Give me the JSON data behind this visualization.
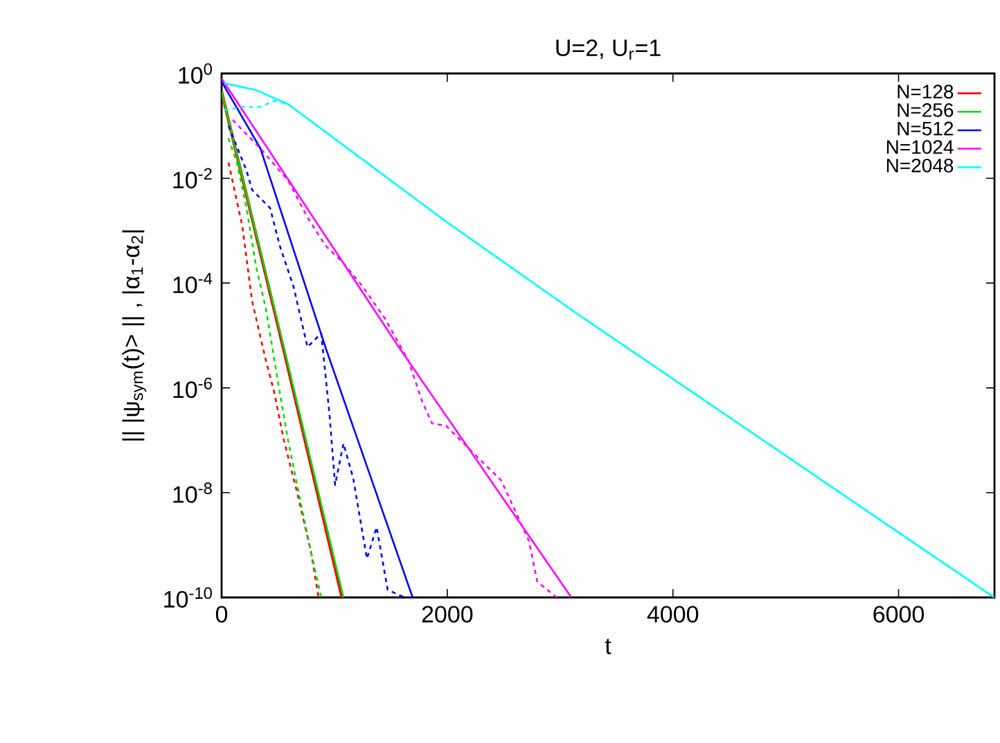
{
  "chart_data": {
    "type": "line",
    "title": "U=2, U$_{r}$=1",
    "xlabel": "t",
    "ylabel": "|| |ψ$_{sym}$(t)> || , |α$_{1}$-α$_{2}$|",
    "log": "y",
    "legend": "top right",
    "xlim": [
      0,
      6850
    ],
    "xticks": [
      0,
      2000,
      4000,
      6000
    ],
    "ylim": [
      1e-10,
      1
    ],
    "yticks": [
      {
        "value": 1e-10,
        "label": "10$^{-10}$"
      },
      {
        "value": 1e-08,
        "label": "10$^{-8}$"
      },
      {
        "value": 1e-06,
        "label": "10$^{-6}$"
      },
      {
        "value": 0.0001,
        "label": "10$^{-4}$"
      },
      {
        "value": 0.01,
        "label": "10$^{-2}$"
      },
      {
        "value": 1,
        "label": "10$^{0}$"
      }
    ],
    "series": [
      {
        "name": "N=128",
        "color": "#ff0000",
        "line_style": "solid",
        "x": [
          0,
          545,
          1067
        ],
        "values": [
          0.45,
          6e-06,
          1e-10
        ]
      },
      {
        "name": "N=256",
        "color": "#00dd00",
        "line_style": "solid",
        "x": [
          0,
          552,
          1080
        ],
        "values": [
          0.45,
          6e-06,
          1e-10
        ]
      },
      {
        "name": "N=512",
        "color": "#0000ff",
        "line_style": "solid",
        "x": [
          0,
          344,
          920,
          1693
        ],
        "values": [
          0.7,
          0.037,
          6e-06,
          1e-10
        ]
      },
      {
        "name": "N=1024",
        "color": "#ff00ff",
        "line_style": "solid",
        "x": [
          0,
          1570,
          3100
        ],
        "values": [
          0.8,
          6e-06,
          1e-10
        ]
      },
      {
        "name": "N=2048",
        "color": "#00ffff",
        "line_style": "solid",
        "x": [
          25,
          307,
          589,
          1166,
          1988,
          3129,
          6847
        ],
        "values": [
          0.65,
          0.48,
          0.26,
          0.031,
          0.0015,
          2.8e-05,
          1e-10
        ]
      },
      {
        "color": "#ff0000",
        "line_style": "dashed",
        "x": [
          61,
          184,
          270,
          344,
          393,
          466,
          552,
          675,
          797,
          859
        ],
        "values": [
          0.02,
          0.0012,
          4.6e-05,
          9.3e-06,
          3.3e-06,
          8.3e-07,
          1e-07,
          9e-09,
          6.6e-10,
          1e-10
        ]
      },
      {
        "color": "#00dd00",
        "line_style": "dashed",
        "x": [
          61,
          135,
          221,
          307,
          393,
          515,
          589,
          712,
          797,
          883
        ],
        "values": [
          0.058,
          0.02,
          0.0027,
          0.0002,
          3.2e-05,
          8.3e-07,
          1e-07,
          5e-09,
          6.6e-10,
          1e-10
        ]
      },
      {
        "color": "#0000ff",
        "line_style": "dashed",
        "x": [
          61,
          221,
          270,
          430,
          515,
          638,
          761,
          883,
          957,
          1006,
          1080,
          1166,
          1288,
          1374,
          1472,
          1620
        ],
        "values": [
          0.1,
          0.014,
          0.006,
          0.0027,
          0.00052,
          8.5e-05,
          6e-06,
          1.1e-05,
          3e-07,
          1.4e-08,
          8.7e-08,
          1.9e-08,
          5.5e-10,
          2.2e-09,
          1.4e-10,
          1e-10
        ]
      },
      {
        "color": "#ff00ff",
        "line_style": "dashed",
        "x": [
          98,
          344,
          589,
          761,
          920,
          1080,
          1252,
          1448,
          1656,
          1779,
          1865,
          1988,
          2184,
          2479,
          2724,
          2798,
          2970
        ],
        "values": [
          0.13,
          0.037,
          0.0091,
          0.0018,
          0.00052,
          0.00024,
          8.5e-05,
          2.1e-05,
          3.3e-06,
          5.4e-07,
          2.1e-07,
          1.9e-07,
          7.2e-08,
          1.7e-08,
          1.2e-09,
          2e-10,
          1e-10
        ]
      },
      {
        "color": "#00ffff",
        "line_style": "dashed",
        "x": [
          25,
          184,
          344,
          466,
          589,
          1166,
          1988,
          3129,
          6847
        ],
        "values": [
          0.2,
          0.23,
          0.23,
          0.3,
          0.26,
          0.031,
          0.0015,
          2.8e-05,
          1e-10
        ]
      }
    ]
  }
}
